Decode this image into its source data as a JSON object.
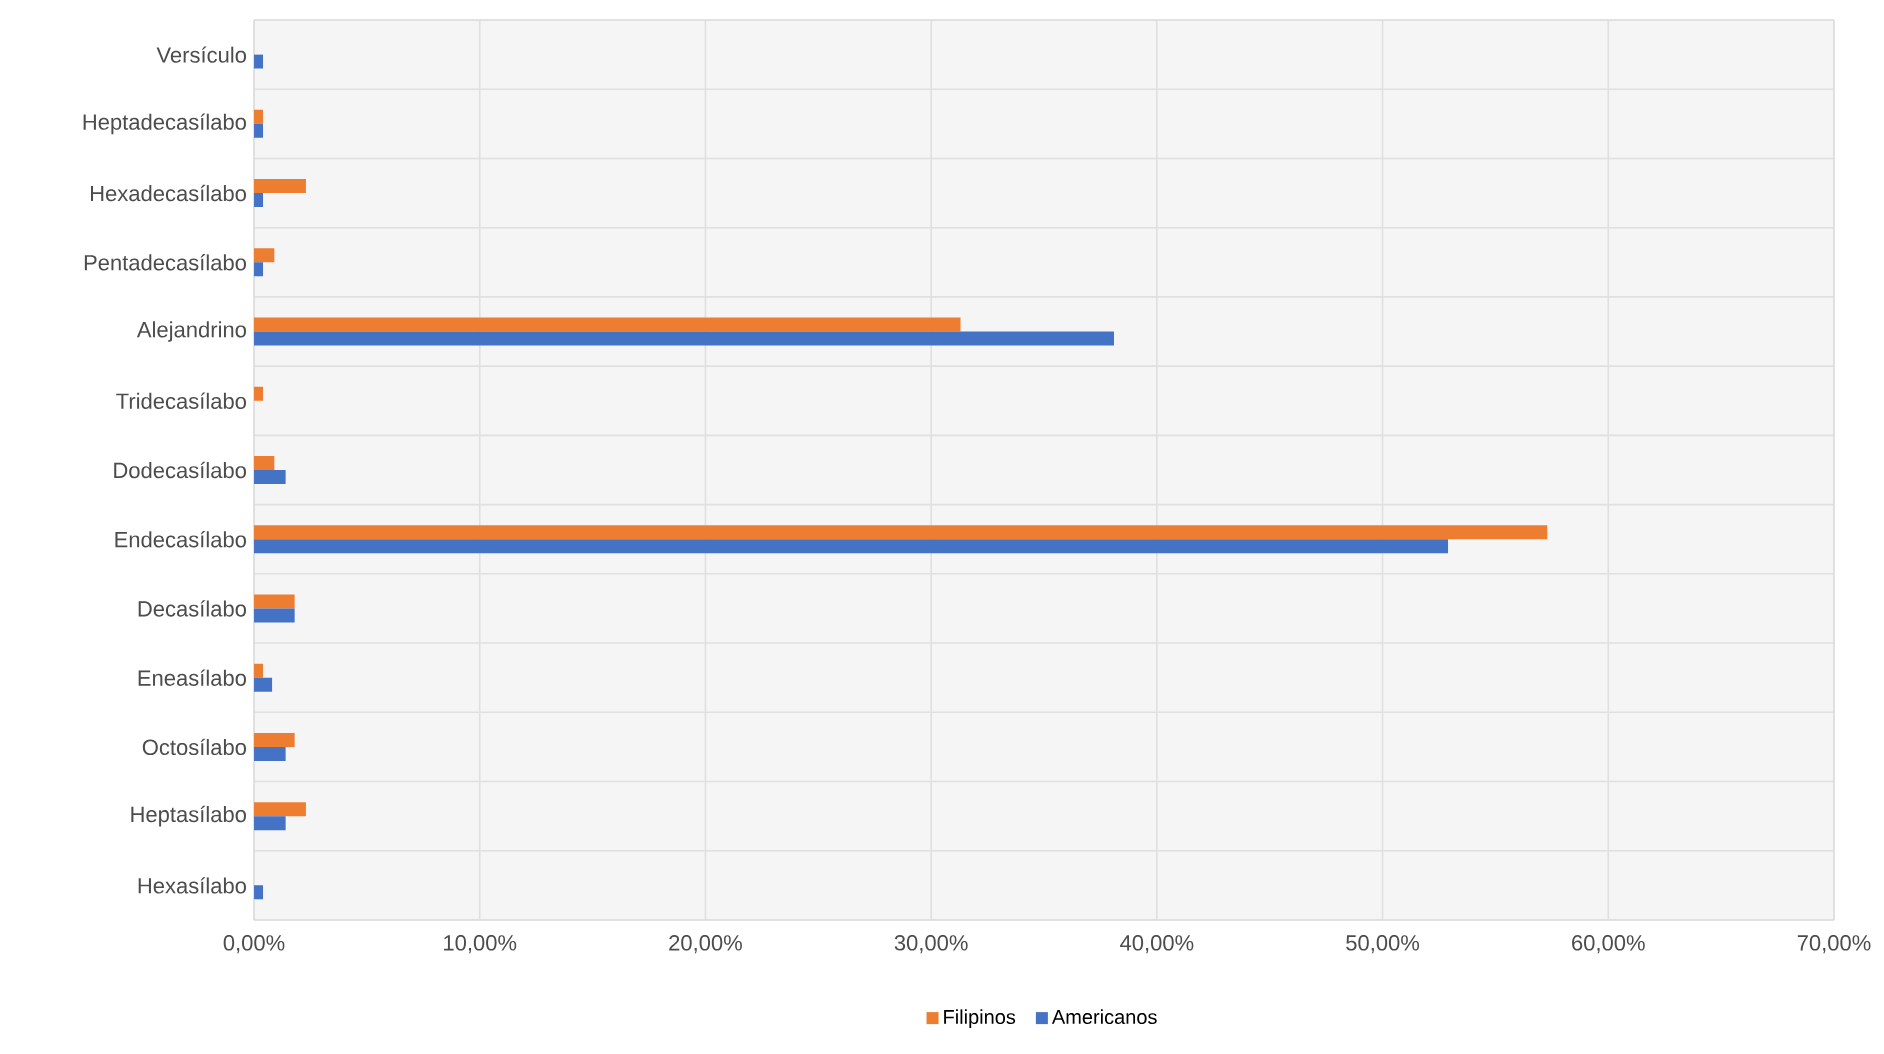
{
  "chart_data": {
    "type": "bar",
    "orientation": "horizontal",
    "categories": [
      "Versículo",
      "Heptadecasílabo",
      "Hexadecasílabo",
      "Pentadecasílabo",
      "Alejandrino",
      "Tridecasílabo",
      "Dodecasílabo",
      "Endecasílabo",
      "Decasílabo",
      "Eneasílabo",
      "Octosílabo",
      "Heptasílabo",
      "Hexasílabo"
    ],
    "series": [
      {
        "name": "Filipinos",
        "color": "#ed7d31",
        "values": [
          null,
          0.4,
          2.3,
          0.9,
          31.3,
          0.4,
          0.9,
          57.3,
          1.8,
          0.4,
          1.8,
          2.3,
          null
        ]
      },
      {
        "name": "Americanos",
        "color": "#4472c4",
        "values": [
          0.4,
          0.4,
          0.4,
          0.4,
          38.1,
          null,
          1.4,
          52.9,
          1.8,
          0.8,
          1.4,
          1.4,
          0.4
        ]
      }
    ],
    "xlim": [
      0,
      70
    ],
    "xticks": [
      {
        "value": 0,
        "label": "0,00%"
      },
      {
        "value": 10,
        "label": "10,00%"
      },
      {
        "value": 20,
        "label": "20,00%"
      },
      {
        "value": 30,
        "label": "30,00%"
      },
      {
        "value": 40,
        "label": "40,00%"
      },
      {
        "value": 50,
        "label": "50,00%"
      },
      {
        "value": 60,
        "label": "60,00%"
      },
      {
        "value": 70,
        "label": "70,00%"
      }
    ],
    "grid": true,
    "legend": "bottom"
  }
}
